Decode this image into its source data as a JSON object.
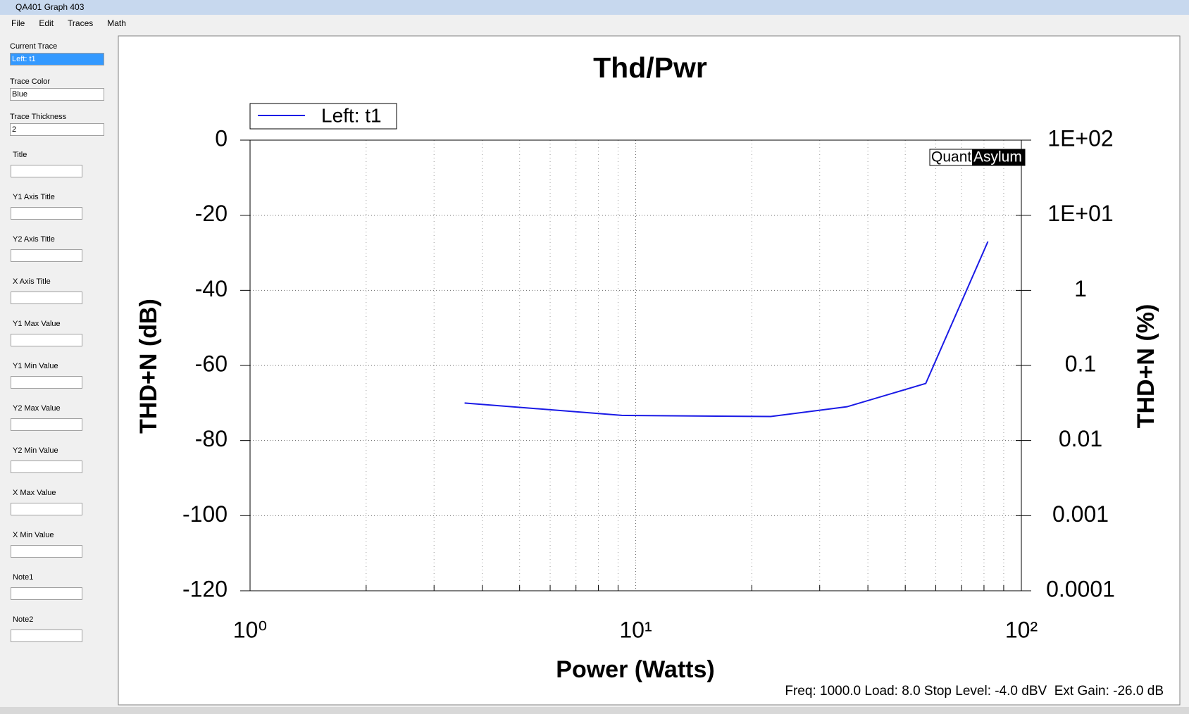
{
  "window": {
    "title": "QA401 Graph 403",
    "menu": [
      "File",
      "Edit",
      "Traces",
      "Math"
    ]
  },
  "sidebar": {
    "combos": [
      {
        "label": "Current Trace",
        "value": "Left: t1"
      },
      {
        "label": "Trace Color",
        "value": "Blue"
      },
      {
        "label": "Trace Thickness",
        "value": "2"
      }
    ],
    "fields": [
      "Title",
      "Y1 Axis Title",
      "Y2 Axis Title",
      "X Axis Title",
      "Y1 Max Value",
      "Y1 Min Value",
      "Y2 Max Value",
      "Y2 Min Value",
      "X Max Value",
      "X Min Value",
      "Note1",
      "Note2"
    ]
  },
  "chart_data": {
    "type": "line",
    "title": "Thd/Pwr",
    "x_label": "Power (Watts)",
    "y_label": "THD+N (dB)",
    "y2_label": "THD+N (%)",
    "watermark": [
      "Quant",
      "Asylum"
    ],
    "footer": "Freq: 1000.0 Load: 8.0 Stop Level: -4.0 dBV  Ext Gain: -26.0 dB",
    "x_scale": "log",
    "xlim": [
      1,
      100
    ],
    "xticks": [
      {
        "value": 1,
        "label": "10⁰"
      },
      {
        "value": 10,
        "label": "10¹"
      },
      {
        "value": 100,
        "label": "10²"
      }
    ],
    "xminorticks": [
      2,
      3,
      4,
      5,
      6,
      7,
      8,
      9,
      20,
      30,
      40,
      50,
      60,
      70,
      80,
      90
    ],
    "ylim": [
      -120,
      0
    ],
    "yticks": [
      0,
      -20,
      -40,
      -60,
      -80,
      -100,
      -120
    ],
    "y2_scale": "log",
    "y2lim": [
      0.0001,
      100
    ],
    "y2ticks": [
      {
        "value": 100,
        "label": "1E+02"
      },
      {
        "value": 10,
        "label": "1E+01"
      },
      1,
      0.1,
      0.01,
      0.001,
      0.0001
    ],
    "grid": true,
    "legend": "top-left",
    "series": [
      {
        "name": "Left: t1",
        "color": "#1a1ae6",
        "x": [
          3.6,
          9.2,
          22.4,
          35.3,
          56.5,
          81.9
        ],
        "values": [
          -70,
          -73.3,
          -73.6,
          -71,
          -64.8,
          -27
        ]
      }
    ]
  }
}
